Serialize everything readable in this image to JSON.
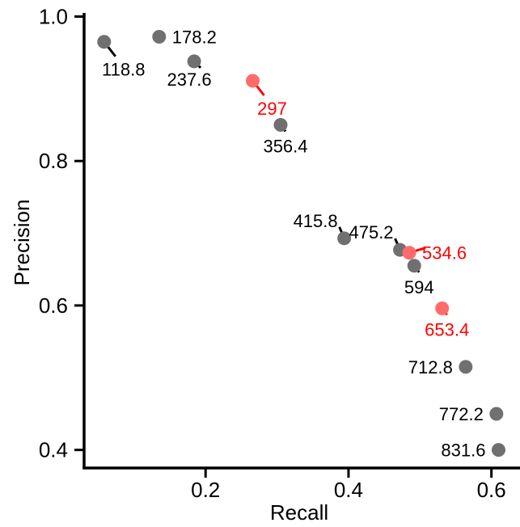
{
  "chart_data": {
    "type": "scatter",
    "title": "",
    "xlabel": "Recall",
    "ylabel": "Precision",
    "xlim": [
      0.03,
      0.64
    ],
    "ylim": [
      0.375,
      1.005
    ],
    "xticks": [
      0.2,
      0.4,
      0.6
    ],
    "xtick_labels": [
      "0.2",
      "0.4",
      "0.6"
    ],
    "yticks": [
      0.4,
      0.6,
      0.8,
      1.0
    ],
    "ytick_labels": [
      "0.4",
      "0.6",
      "0.8",
      "1.0"
    ],
    "grid": false,
    "legend": "none",
    "colors": {
      "normal": "#707070",
      "highlight": "#ff6b6b",
      "highlight_text": "#ff0000",
      "text": "#000000",
      "leader": "#000000"
    },
    "points": [
      {
        "x": 0.058,
        "y": 0.965,
        "label": "118.8",
        "highlight": false,
        "label_pos": "below-right"
      },
      {
        "x": 0.135,
        "y": 0.972,
        "label": "178.2",
        "highlight": false,
        "label_pos": "right"
      },
      {
        "x": 0.184,
        "y": 0.938,
        "label": "237.6",
        "highlight": false,
        "label_pos": "below-left"
      },
      {
        "x": 0.266,
        "y": 0.911,
        "label": "297",
        "highlight": true,
        "label_pos": "below-right"
      },
      {
        "x": 0.305,
        "y": 0.85,
        "label": "356.4",
        "highlight": false,
        "label_pos": "below"
      },
      {
        "x": 0.394,
        "y": 0.693,
        "label": "415.8",
        "highlight": false,
        "label_pos": "above-left"
      },
      {
        "x": 0.472,
        "y": 0.677,
        "label": "475.2",
        "highlight": false,
        "label_pos": "above-left"
      },
      {
        "x": 0.485,
        "y": 0.673,
        "label": "534.6",
        "highlight": true,
        "label_pos": "right"
      },
      {
        "x": 0.492,
        "y": 0.655,
        "label": "594",
        "highlight": false,
        "label_pos": "below"
      },
      {
        "x": 0.531,
        "y": 0.596,
        "label": "653.4",
        "highlight": true,
        "label_pos": "below"
      },
      {
        "x": 0.564,
        "y": 0.515,
        "label": "712.8",
        "highlight": false,
        "label_pos": "left"
      },
      {
        "x": 0.607,
        "y": 0.45,
        "label": "772.2",
        "highlight": false,
        "label_pos": "left"
      },
      {
        "x": 0.61,
        "y": 0.4,
        "label": "831.6",
        "highlight": false,
        "label_pos": "left"
      }
    ]
  }
}
